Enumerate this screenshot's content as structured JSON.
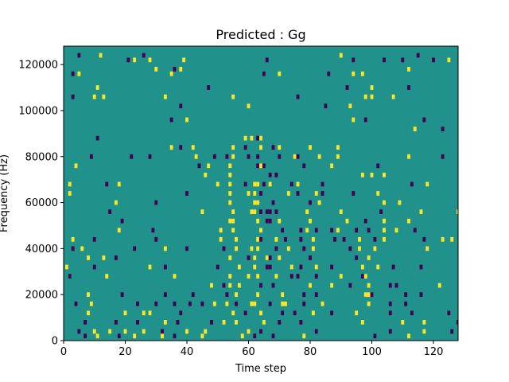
{
  "chart_data": {
    "type": "heatmap",
    "title": "Predicted : Gg",
    "xlabel": "Time step",
    "ylabel": "Frequency (Hz)",
    "xlim": [
      0,
      128
    ],
    "ylim": [
      0,
      128000
    ],
    "x_ticks": [
      0,
      20,
      40,
      60,
      80,
      100,
      120
    ],
    "y_ticks": [
      0,
      20000,
      40000,
      60000,
      80000,
      100000,
      120000
    ],
    "x_tick_labels": [
      "0",
      "20",
      "40",
      "60",
      "80",
      "100",
      "120"
    ],
    "y_tick_labels": [
      "0",
      "20000",
      "40000",
      "60000",
      "80000",
      "100000",
      "120000"
    ],
    "bin_width_hz": 1000,
    "colormap": "viridis",
    "levels": {
      "low": -1,
      "mid": 0,
      "high": 1
    },
    "colors": {
      "low": "#440154",
      "mid": "#21918c",
      "high": "#fde725"
    },
    "background_value": 0,
    "grid": false,
    "cells": [
      [
        5,
        124,
        -1
      ],
      [
        12,
        124,
        1
      ],
      [
        26,
        124,
        -1
      ],
      [
        90,
        124,
        1
      ],
      [
        115,
        124,
        -1
      ],
      [
        21,
        122,
        -1
      ],
      [
        23,
        122,
        1
      ],
      [
        28,
        122,
        1
      ],
      [
        39,
        122,
        1
      ],
      [
        66,
        122,
        -1
      ],
      [
        94,
        122,
        -1
      ],
      [
        104,
        122,
        -1
      ],
      [
        110,
        122,
        -1
      ],
      [
        120,
        122,
        -1
      ],
      [
        125,
        122,
        1
      ],
      [
        30,
        118,
        1
      ],
      [
        36,
        118,
        -1
      ],
      [
        38,
        118,
        1
      ],
      [
        112,
        118,
        1
      ],
      [
        3,
        116,
        -1
      ],
      [
        5,
        116,
        1
      ],
      [
        35,
        116,
        1
      ],
      [
        65,
        116,
        -1
      ],
      [
        70,
        116,
        1
      ],
      [
        86,
        116,
        -1
      ],
      [
        94,
        116,
        1
      ],
      [
        97,
        116,
        1
      ],
      [
        11,
        110,
        1
      ],
      [
        47,
        110,
        -1
      ],
      [
        92,
        110,
        -1
      ],
      [
        100,
        110,
        1
      ],
      [
        112,
        110,
        -1
      ],
      [
        3,
        106,
        -1
      ],
      [
        10,
        106,
        1
      ],
      [
        13,
        106,
        1
      ],
      [
        33,
        106,
        1
      ],
      [
        55,
        106,
        1
      ],
      [
        76,
        106,
        -1
      ],
      [
        98,
        106,
        1
      ],
      [
        100,
        106,
        1
      ],
      [
        107,
        106,
        1
      ],
      [
        38,
        102,
        -1
      ],
      [
        60,
        102,
        1
      ],
      [
        85,
        102,
        -1
      ],
      [
        93,
        102,
        1
      ],
      [
        35,
        96,
        -1
      ],
      [
        40,
        96,
        1
      ],
      [
        94,
        96,
        1
      ],
      [
        98,
        96,
        -1
      ],
      [
        117,
        96,
        -1
      ],
      [
        114,
        92,
        1
      ],
      [
        123,
        92,
        -1
      ],
      [
        11,
        88,
        -1
      ],
      [
        59,
        88,
        1
      ],
      [
        61,
        88,
        1
      ],
      [
        63,
        88,
        -1
      ],
      [
        64,
        88,
        1
      ],
      [
        35,
        84,
        1
      ],
      [
        38,
        84,
        -1
      ],
      [
        42,
        84,
        1
      ],
      [
        55,
        84,
        1
      ],
      [
        59,
        84,
        -1
      ],
      [
        64,
        84,
        1
      ],
      [
        68,
        84,
        -1
      ],
      [
        70,
        84,
        1
      ],
      [
        80,
        84,
        1
      ],
      [
        89,
        84,
        1
      ],
      [
        9,
        80,
        -1
      ],
      [
        22,
        80,
        -1
      ],
      [
        28,
        80,
        -1
      ],
      [
        43,
        80,
        1
      ],
      [
        49,
        80,
        -1
      ],
      [
        53,
        80,
        -1
      ],
      [
        55,
        80,
        1
      ],
      [
        60,
        80,
        -1
      ],
      [
        63,
        80,
        -1
      ],
      [
        70,
        80,
        -1
      ],
      [
        75,
        80,
        1
      ],
      [
        76,
        80,
        -1
      ],
      [
        83,
        80,
        1
      ],
      [
        89,
        80,
        1
      ],
      [
        112,
        80,
        1
      ],
      [
        123,
        80,
        -1
      ],
      [
        4,
        76,
        1
      ],
      [
        44,
        76,
        -1
      ],
      [
        47,
        76,
        1
      ],
      [
        54,
        76,
        1
      ],
      [
        63,
        76,
        -1
      ],
      [
        64,
        76,
        1
      ],
      [
        65,
        76,
        -1
      ],
      [
        78,
        76,
        -1
      ],
      [
        87,
        76,
        1
      ],
      [
        102,
        76,
        -1
      ],
      [
        46,
        72,
        1
      ],
      [
        54,
        72,
        1
      ],
      [
        67,
        72,
        -1
      ],
      [
        69,
        72,
        -1
      ],
      [
        97,
        72,
        1
      ],
      [
        100,
        72,
        1
      ],
      [
        104,
        72,
        1
      ],
      [
        2,
        68,
        1
      ],
      [
        14,
        68,
        -1
      ],
      [
        18,
        68,
        1
      ],
      [
        50,
        68,
        1
      ],
      [
        54,
        68,
        1
      ],
      [
        59,
        68,
        -1
      ],
      [
        62,
        68,
        1
      ],
      [
        63,
        68,
        1
      ],
      [
        65,
        68,
        -1
      ],
      [
        67,
        68,
        1
      ],
      [
        74,
        68,
        -1
      ],
      [
        76,
        68,
        1
      ],
      [
        84,
        68,
        -1
      ],
      [
        113,
        68,
        -1
      ],
      [
        118,
        68,
        1
      ],
      [
        2,
        64,
        1
      ],
      [
        40,
        64,
        -1
      ],
      [
        54,
        64,
        1
      ],
      [
        60,
        64,
        1
      ],
      [
        62,
        64,
        1
      ],
      [
        64,
        64,
        -1
      ],
      [
        73,
        64,
        1
      ],
      [
        76,
        64,
        -1
      ],
      [
        82,
        64,
        1
      ],
      [
        84,
        64,
        -1
      ],
      [
        94,
        64,
        -1
      ],
      [
        102,
        64,
        1
      ],
      [
        17,
        60,
        1
      ],
      [
        30,
        60,
        -1
      ],
      [
        54,
        60,
        1
      ],
      [
        62,
        60,
        1
      ],
      [
        63,
        60,
        1
      ],
      [
        68,
        60,
        -1
      ],
      [
        80,
        60,
        -1
      ],
      [
        83,
        60,
        1
      ],
      [
        104,
        60,
        1
      ],
      [
        109,
        60,
        1
      ],
      [
        15,
        56,
        -1
      ],
      [
        45,
        56,
        1
      ],
      [
        55,
        56,
        1
      ],
      [
        61,
        56,
        1
      ],
      [
        62,
        56,
        1
      ],
      [
        64,
        56,
        -1
      ],
      [
        66,
        56,
        -1
      ],
      [
        67,
        56,
        -1
      ],
      [
        69,
        56,
        -1
      ],
      [
        79,
        56,
        1
      ],
      [
        90,
        56,
        1
      ],
      [
        103,
        56,
        -1
      ],
      [
        116,
        56,
        1
      ],
      [
        128,
        56,
        1
      ],
      [
        19,
        52,
        -1
      ],
      [
        54,
        52,
        1
      ],
      [
        55,
        52,
        1
      ],
      [
        63,
        52,
        1
      ],
      [
        66,
        52,
        -1
      ],
      [
        67,
        52,
        -1
      ],
      [
        70,
        52,
        1
      ],
      [
        80,
        52,
        1
      ],
      [
        92,
        52,
        1
      ],
      [
        98,
        52,
        -1
      ],
      [
        104,
        52,
        1
      ],
      [
        112,
        52,
        1
      ],
      [
        18,
        48,
        1
      ],
      [
        29,
        48,
        -1
      ],
      [
        51,
        48,
        1
      ],
      [
        55,
        48,
        1
      ],
      [
        64,
        48,
        1
      ],
      [
        71,
        48,
        -1
      ],
      [
        77,
        48,
        -1
      ],
      [
        79,
        48,
        1
      ],
      [
        82,
        48,
        -1
      ],
      [
        87,
        48,
        -1
      ],
      [
        89,
        48,
        1
      ],
      [
        95,
        48,
        -1
      ],
      [
        99,
        48,
        -1
      ],
      [
        104,
        48,
        1
      ],
      [
        108,
        48,
        1
      ],
      [
        114,
        48,
        -1
      ],
      [
        3,
        44,
        1
      ],
      [
        10,
        44,
        -1
      ],
      [
        30,
        44,
        -1
      ],
      [
        51,
        44,
        1
      ],
      [
        56,
        44,
        1
      ],
      [
        63,
        44,
        1
      ],
      [
        64,
        44,
        -1
      ],
      [
        69,
        44,
        1
      ],
      [
        72,
        44,
        -1
      ],
      [
        77,
        44,
        -1
      ],
      [
        81,
        44,
        1
      ],
      [
        88,
        44,
        -1
      ],
      [
        91,
        44,
        -1
      ],
      [
        96,
        44,
        1
      ],
      [
        101,
        44,
        -1
      ],
      [
        104,
        44,
        1
      ],
      [
        117,
        44,
        -1
      ],
      [
        123,
        44,
        1
      ],
      [
        126,
        44,
        1
      ],
      [
        3,
        40,
        -1
      ],
      [
        6,
        40,
        1
      ],
      [
        23,
        40,
        -1
      ],
      [
        33,
        40,
        1
      ],
      [
        40,
        40,
        -1
      ],
      [
        52,
        40,
        -1
      ],
      [
        56,
        40,
        1
      ],
      [
        61,
        40,
        1
      ],
      [
        63,
        40,
        1
      ],
      [
        69,
        40,
        -1
      ],
      [
        73,
        40,
        1
      ],
      [
        78,
        40,
        -1
      ],
      [
        81,
        40,
        1
      ],
      [
        93,
        40,
        -1
      ],
      [
        96,
        40,
        1
      ],
      [
        101,
        40,
        1
      ],
      [
        118,
        40,
        1
      ],
      [
        8,
        36,
        1
      ],
      [
        13,
        36,
        1
      ],
      [
        17,
        36,
        -1
      ],
      [
        54,
        36,
        1
      ],
      [
        60,
        36,
        -1
      ],
      [
        62,
        36,
        1
      ],
      [
        66,
        36,
        1
      ],
      [
        67,
        36,
        -1
      ],
      [
        70,
        36,
        1
      ],
      [
        80,
        36,
        -1
      ],
      [
        95,
        36,
        -1
      ],
      [
        99,
        36,
        1
      ],
      [
        1,
        32,
        1
      ],
      [
        10,
        32,
        -1
      ],
      [
        28,
        32,
        1
      ],
      [
        33,
        32,
        -1
      ],
      [
        50,
        32,
        -1
      ],
      [
        57,
        32,
        1
      ],
      [
        62,
        32,
        1
      ],
      [
        66,
        32,
        -1
      ],
      [
        67,
        32,
        -1
      ],
      [
        74,
        32,
        1
      ],
      [
        77,
        32,
        -1
      ],
      [
        82,
        32,
        1
      ],
      [
        87,
        32,
        -1
      ],
      [
        97,
        32,
        1
      ],
      [
        102,
        32,
        1
      ],
      [
        107,
        32,
        -1
      ],
      [
        116,
        32,
        -1
      ],
      [
        2,
        28,
        -1
      ],
      [
        14,
        28,
        1
      ],
      [
        36,
        28,
        1
      ],
      [
        54,
        28,
        1
      ],
      [
        60,
        28,
        1
      ],
      [
        63,
        28,
        1
      ],
      [
        69,
        28,
        1
      ],
      [
        74,
        28,
        -1
      ],
      [
        76,
        28,
        -1
      ],
      [
        82,
        28,
        -1
      ],
      [
        90,
        28,
        1
      ],
      [
        97,
        28,
        -1
      ],
      [
        98,
        28,
        1
      ],
      [
        48,
        24,
        1
      ],
      [
        52,
        24,
        -1
      ],
      [
        54,
        24,
        1
      ],
      [
        57,
        24,
        1
      ],
      [
        64,
        24,
        -1
      ],
      [
        68,
        24,
        -1
      ],
      [
        80,
        24,
        1
      ],
      [
        87,
        24,
        1
      ],
      [
        93,
        24,
        -1
      ],
      [
        99,
        24,
        1
      ],
      [
        106,
        24,
        -1
      ],
      [
        108,
        24,
        -1
      ],
      [
        122,
        24,
        1
      ],
      [
        8,
        20,
        1
      ],
      [
        19,
        20,
        -1
      ],
      [
        33,
        20,
        -1
      ],
      [
        42,
        20,
        -1
      ],
      [
        53,
        20,
        -1
      ],
      [
        56,
        20,
        1
      ],
      [
        63,
        20,
        1
      ],
      [
        71,
        20,
        1
      ],
      [
        78,
        20,
        -1
      ],
      [
        82,
        20,
        -1
      ],
      [
        98,
        20,
        1
      ],
      [
        99,
        20,
        1
      ],
      [
        100,
        20,
        -1
      ],
      [
        111,
        20,
        -1
      ],
      [
        116,
        20,
        -1
      ],
      [
        4,
        16,
        -1
      ],
      [
        9,
        16,
        1
      ],
      [
        24,
        16,
        -1
      ],
      [
        30,
        16,
        -1
      ],
      [
        36,
        16,
        -1
      ],
      [
        41,
        16,
        -1
      ],
      [
        45,
        16,
        -1
      ],
      [
        49,
        16,
        1
      ],
      [
        53,
        16,
        1
      ],
      [
        56,
        16,
        -1
      ],
      [
        61,
        16,
        1
      ],
      [
        62,
        16,
        1
      ],
      [
        67,
        16,
        -1
      ],
      [
        71,
        16,
        1
      ],
      [
        72,
        16,
        1
      ],
      [
        78,
        16,
        -1
      ],
      [
        84,
        16,
        1
      ],
      [
        99,
        16,
        1
      ],
      [
        106,
        16,
        -1
      ],
      [
        111,
        16,
        -1
      ],
      [
        8,
        12,
        1
      ],
      [
        20,
        12,
        1
      ],
      [
        26,
        12,
        1
      ],
      [
        28,
        12,
        1
      ],
      [
        38,
        12,
        -1
      ],
      [
        55,
        12,
        1
      ],
      [
        59,
        12,
        -1
      ],
      [
        64,
        12,
        1
      ],
      [
        71,
        12,
        -1
      ],
      [
        75,
        12,
        -1
      ],
      [
        81,
        12,
        1
      ],
      [
        87,
        12,
        -1
      ],
      [
        95,
        12,
        1
      ],
      [
        106,
        12,
        -1
      ],
      [
        113,
        12,
        -1
      ],
      [
        125,
        12,
        -1
      ],
      [
        7,
        8,
        -1
      ],
      [
        17,
        8,
        -1
      ],
      [
        24,
        8,
        -1
      ],
      [
        33,
        8,
        1
      ],
      [
        37,
        8,
        -1
      ],
      [
        48,
        8,
        -1
      ],
      [
        52,
        8,
        1
      ],
      [
        56,
        8,
        1
      ],
      [
        65,
        8,
        1
      ],
      [
        70,
        8,
        -1
      ],
      [
        77,
        8,
        -1
      ],
      [
        97,
        8,
        1
      ],
      [
        110,
        8,
        1
      ],
      [
        117,
        8,
        1
      ],
      [
        128,
        8,
        -1
      ],
      [
        5,
        4,
        -1
      ],
      [
        10,
        4,
        1
      ],
      [
        15,
        4,
        1
      ],
      [
        20,
        4,
        1
      ],
      [
        26,
        4,
        1
      ],
      [
        32,
        4,
        -1
      ],
      [
        40,
        4,
        1
      ],
      [
        46,
        4,
        1
      ],
      [
        60,
        4,
        1
      ],
      [
        64,
        4,
        -1
      ],
      [
        82,
        4,
        -1
      ],
      [
        106,
        4,
        -1
      ],
      [
        117,
        4,
        1
      ],
      [
        126,
        4,
        -1
      ],
      [
        7,
        2,
        -1
      ],
      [
        11,
        2,
        1
      ],
      [
        18,
        2,
        -1
      ],
      [
        23,
        2,
        1
      ],
      [
        32,
        2,
        1
      ],
      [
        36,
        2,
        -1
      ],
      [
        45,
        2,
        1
      ],
      [
        58,
        2,
        1
      ],
      [
        62,
        2,
        -1
      ],
      [
        68,
        2,
        -1
      ],
      [
        78,
        2,
        1
      ],
      [
        101,
        2,
        -1
      ],
      [
        112,
        2,
        1
      ]
    ]
  }
}
